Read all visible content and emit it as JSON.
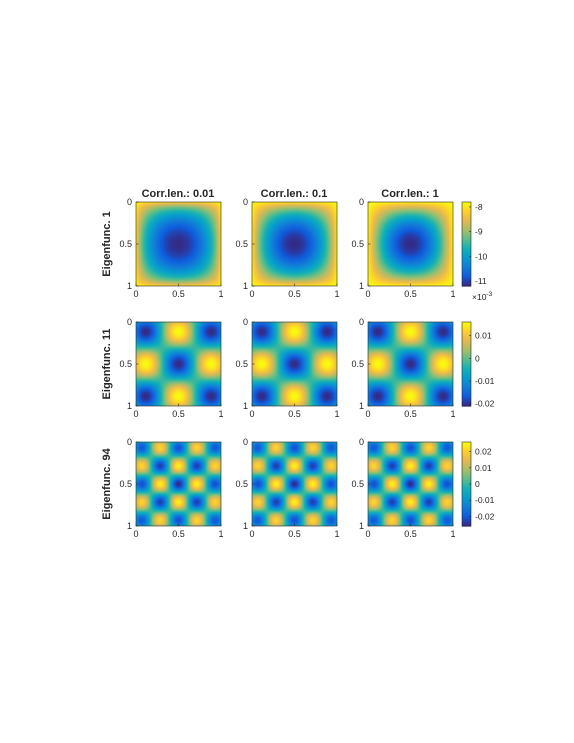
{
  "figure": {
    "column_titles": [
      "Corr.len.: 0.01",
      "Corr.len.: 0.1",
      "Corr.len.: 1"
    ],
    "row_labels": [
      "Eigenfunc. 1",
      "Eigenfunc. 11",
      "Eigenfunc. 94"
    ]
  },
  "chart_data": [
    {
      "type": "heatmap",
      "row": "Eigenfunc. 1",
      "columns": [
        "Corr.len.: 0.01",
        "Corr.len.: 0.1",
        "Corr.len.: 1"
      ],
      "pattern": "single low basin centered at (0.5, 0.5), rising toward corners",
      "x_ticks": [
        "0",
        "0.5",
        "1"
      ],
      "y_ticks": [
        "0",
        "0.5",
        "1"
      ],
      "xlim": [
        0,
        1
      ],
      "ylim": [
        0,
        1
      ],
      "y_reversed": true,
      "colormap": "parula",
      "clim": [
        -0.0112,
        -0.0078
      ],
      "colorbar_ticks": [
        -0.008,
        -0.009,
        -0.01,
        -0.011
      ],
      "colorbar_tick_labels": [
        "-8",
        "-9",
        "-10",
        "-11"
      ],
      "colorbar_exponent_label": "×10",
      "colorbar_exponent": "-3"
    },
    {
      "type": "heatmap",
      "row": "Eigenfunc. 11",
      "columns": [
        "Corr.len.: 0.01",
        "Corr.len.: 0.1",
        "Corr.len.: 1"
      ],
      "pattern": "3x3 checkerboard of alternating peaks and troughs",
      "x_ticks": [
        "0",
        "0.5",
        "1"
      ],
      "y_ticks": [
        "0",
        "0.5",
        "1"
      ],
      "xlim": [
        0,
        1
      ],
      "ylim": [
        0,
        1
      ],
      "y_reversed": true,
      "colormap": "parula",
      "clim": [
        -0.021,
        0.016
      ],
      "colorbar_ticks": [
        0.01,
        0,
        -0.01,
        -0.02
      ],
      "colorbar_tick_labels": [
        "0.01",
        "0",
        "-0.01",
        "-0.02"
      ]
    },
    {
      "type": "heatmap",
      "row": "Eigenfunc. 94",
      "columns": [
        "Corr.len.: 0.01",
        "Corr.len.: 0.1",
        "Corr.len.: 1"
      ],
      "pattern": "high-frequency diagonal (X-shaped) oscillation",
      "x_ticks": [
        "0",
        "0.5",
        "1"
      ],
      "y_ticks": [
        "0",
        "0.5",
        "1"
      ],
      "xlim": [
        0,
        1
      ],
      "ylim": [
        0,
        1
      ],
      "y_reversed": true,
      "colormap": "parula",
      "clim": [
        -0.026,
        0.026
      ],
      "colorbar_ticks": [
        0.02,
        0.01,
        0,
        -0.01,
        -0.02
      ],
      "colorbar_tick_labels": [
        "0.02",
        "0.01",
        "0",
        "-0.01",
        "-0.02"
      ]
    }
  ]
}
